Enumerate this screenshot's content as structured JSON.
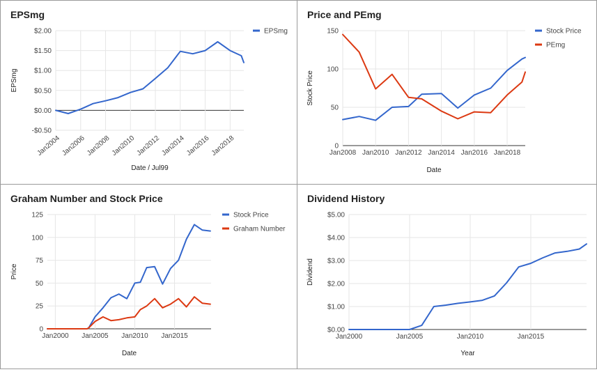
{
  "colors": {
    "blue": "#3366cc",
    "red": "#dc3912",
    "grid": "#e6e6e6",
    "zero": "#333333"
  },
  "chart_data": [
    {
      "type": "line",
      "title": "EPSmg",
      "xlabel": "Date / Jul99",
      "ylabel": "EPSmg",
      "legend_position": "top-right",
      "grid": true,
      "xlim": [
        2004.0,
        2019.1
      ],
      "ylim": [
        -0.5,
        2.0
      ],
      "x_ticks": [
        2004,
        2006,
        2008,
        2010,
        2012,
        2014,
        2016,
        2018
      ],
      "x_tick_labels": [
        "Jan2004",
        "Jan2006",
        "Jan2008",
        "Jan2010",
        "Jan2012",
        "Jan2014",
        "Jan2016",
        "Jan2018"
      ],
      "x_tick_rotation": -40,
      "y_ticks": [
        -0.5,
        0,
        0.5,
        1.0,
        1.5,
        2.0
      ],
      "y_tick_labels": [
        "-$0.50",
        "$0.00",
        "$0.50",
        "$1.00",
        "$1.50",
        "$2.00"
      ],
      "series": [
        {
          "name": "EPSmg",
          "color": "#3366cc",
          "x": [
            2004.0,
            2005.0,
            2006.0,
            2007.0,
            2008.0,
            2009.0,
            2010.0,
            2011.0,
            2012.0,
            2013.0,
            2014.0,
            2015.0,
            2016.0,
            2017.0,
            2018.0,
            2018.9,
            2019.1
          ],
          "y": [
            0.0,
            -0.08,
            0.03,
            0.17,
            0.24,
            0.32,
            0.45,
            0.54,
            0.8,
            1.07,
            1.48,
            1.42,
            1.5,
            1.72,
            1.5,
            1.37,
            1.2
          ]
        }
      ]
    },
    {
      "type": "line",
      "title": "Price and PEmg",
      "xlabel": "Date",
      "ylabel": "Stock Price",
      "legend_position": "top-right",
      "grid": true,
      "xlim": [
        2008.0,
        2019.1
      ],
      "ylim": [
        0,
        150
      ],
      "x_ticks": [
        2008,
        2010,
        2012,
        2014,
        2016,
        2018
      ],
      "x_tick_labels": [
        "Jan2008",
        "Jan2010",
        "Jan2012",
        "Jan2014",
        "Jan2016",
        "Jan2018"
      ],
      "x_tick_rotation": 0,
      "y_ticks": [
        0,
        50,
        100,
        150
      ],
      "y_tick_labels": [
        "0",
        "50",
        "100",
        "150"
      ],
      "series": [
        {
          "name": "Stock Price",
          "color": "#3366cc",
          "x": [
            2008.0,
            2009.0,
            2010.0,
            2011.0,
            2012.0,
            2012.8,
            2014.0,
            2015.0,
            2016.0,
            2017.0,
            2018.0,
            2018.9,
            2019.1
          ],
          "y": [
            34,
            38,
            33,
            50,
            51,
            67,
            68,
            49,
            66,
            75,
            98,
            113,
            115
          ]
        },
        {
          "name": "PEmg",
          "color": "#dc3912",
          "x": [
            2008.0,
            2009.0,
            2010.0,
            2011.0,
            2012.0,
            2012.8,
            2014.0,
            2015.0,
            2016.0,
            2017.0,
            2018.0,
            2018.9,
            2019.1
          ],
          "y": [
            145,
            122,
            74,
            93,
            63,
            61,
            45,
            35,
            44,
            43,
            66,
            83,
            96
          ]
        }
      ]
    },
    {
      "type": "line",
      "title": "Graham Number and Stock Price",
      "xlabel": "Date",
      "ylabel": "Price",
      "legend_position": "top-right",
      "grid": true,
      "xlim": [
        1999.0,
        2019.6
      ],
      "ylim": [
        0,
        125
      ],
      "x_ticks": [
        2000,
        2005,
        2010,
        2015
      ],
      "x_tick_labels": [
        "Jan2000",
        "Jan2005",
        "Jan2010",
        "Jan2015"
      ],
      "x_tick_rotation": 0,
      "y_ticks": [
        0,
        25,
        50,
        75,
        100,
        125
      ],
      "y_tick_labels": [
        "0",
        "25",
        "50",
        "75",
        "100",
        "125"
      ],
      "series": [
        {
          "name": "Stock Price",
          "color": "#3366cc",
          "x": [
            1999.0,
            2000.0,
            2001.0,
            2002.0,
            2003.0,
            2004.0,
            2004.2,
            2005.0,
            2006.0,
            2007.0,
            2008.0,
            2009.0,
            2010.0,
            2010.7,
            2011.5,
            2012.5,
            2013.5,
            2014.5,
            2015.5,
            2016.5,
            2017.5,
            2018.5,
            2019.5
          ],
          "y": [
            0,
            0,
            0,
            0,
            0,
            0,
            1,
            13,
            23,
            34,
            38,
            33,
            50,
            51,
            67,
            68,
            49,
            66,
            75,
            98,
            114,
            108,
            107
          ]
        },
        {
          "name": "Graham Number",
          "color": "#dc3912",
          "x": [
            1999.0,
            2000.0,
            2001.0,
            2002.0,
            2003.0,
            2004.0,
            2004.2,
            2005.0,
            2006.0,
            2007.0,
            2008.0,
            2009.0,
            2010.0,
            2010.7,
            2011.5,
            2012.5,
            2013.5,
            2014.5,
            2015.5,
            2016.5,
            2017.5,
            2018.5,
            2019.5
          ],
          "y": [
            0,
            0,
            0,
            0,
            0,
            0,
            1,
            8,
            13,
            9,
            10,
            12,
            13,
            21,
            25,
            33,
            23,
            27,
            33,
            24,
            35,
            28,
            27
          ]
        }
      ]
    },
    {
      "type": "line",
      "title": "Dividend History",
      "xlabel": "Year",
      "ylabel": "Dividend",
      "legend_position": "none",
      "grid": true,
      "xlim": [
        2000.0,
        2019.6
      ],
      "ylim": [
        0,
        5
      ],
      "x_ticks": [
        2000,
        2005,
        2010,
        2015
      ],
      "x_tick_labels": [
        "Jan2000",
        "Jan2005",
        "Jan2010",
        "Jan2015"
      ],
      "x_tick_rotation": 0,
      "y_ticks": [
        0,
        1,
        2,
        3,
        4,
        5
      ],
      "y_tick_labels": [
        "$0.00",
        "$1.00",
        "$2.00",
        "$3.00",
        "$4.00",
        "$5.00"
      ],
      "series": [
        {
          "name": "",
          "color": "#3366cc",
          "x": [
            2000.0,
            2001.0,
            2002.0,
            2003.0,
            2004.0,
            2005.0,
            2006.0,
            2007.0,
            2008.0,
            2009.0,
            2010.0,
            2011.0,
            2012.0,
            2013.0,
            2014.0,
            2015.0,
            2016.0,
            2017.0,
            2018.0,
            2019.0,
            2019.6
          ],
          "y": [
            0,
            0,
            0,
            0,
            0,
            0,
            0.18,
            1.0,
            1.06,
            1.14,
            1.2,
            1.27,
            1.46,
            2.03,
            2.72,
            2.88,
            3.12,
            3.33,
            3.4,
            3.5,
            3.72
          ]
        }
      ]
    }
  ]
}
